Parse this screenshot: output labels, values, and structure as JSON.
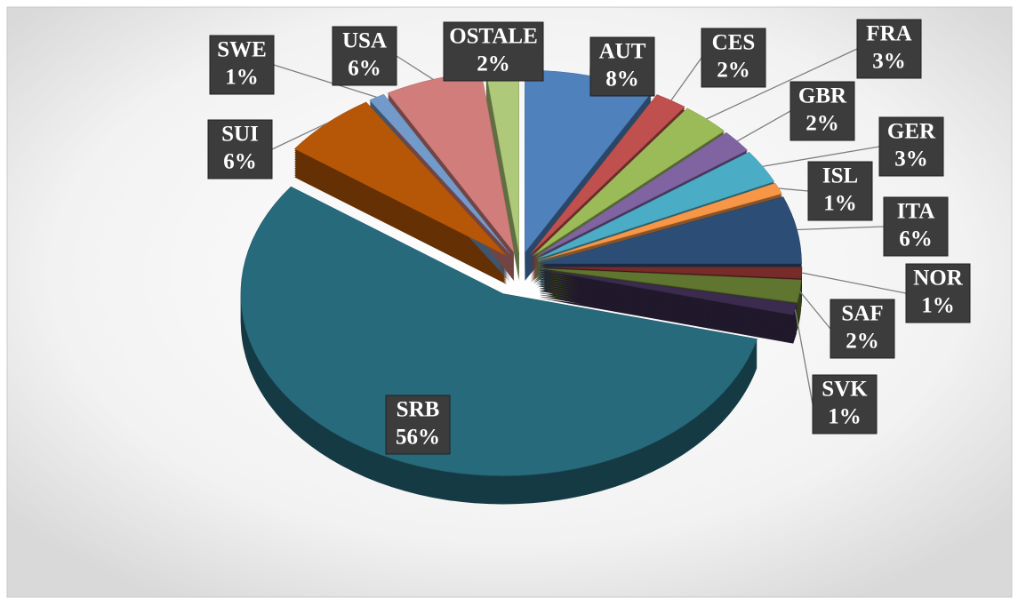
{
  "chart_data": {
    "type": "pie",
    "categories": [
      "AUT",
      "CES",
      "FRA",
      "GBR",
      "GER",
      "ISL",
      "ITA",
      "NOR",
      "SAF",
      "SVK",
      "SRB",
      "SUI",
      "SWE",
      "USA",
      "OSTALE"
    ],
    "values": [
      8,
      2,
      3,
      2,
      3,
      1,
      6,
      1,
      2,
      1,
      56,
      6,
      1,
      6,
      2
    ],
    "value_labels": [
      "8%",
      "2%",
      "3%",
      "2%",
      "3%",
      "1%",
      "6%",
      "1%",
      "2%",
      "1%",
      "56%",
      "6%",
      "1%",
      "6%",
      "2%"
    ],
    "colors": [
      "#4f81bd",
      "#c0504d",
      "#9bbb59",
      "#8064a2",
      "#4bacc6",
      "#f79646",
      "#2c4d75",
      "#772c2a",
      "#5f7530",
      "#3b2b4f",
      "#276a7c",
      "#b65708",
      "#729aca",
      "#d07d7b",
      "#afc97a"
    ]
  }
}
